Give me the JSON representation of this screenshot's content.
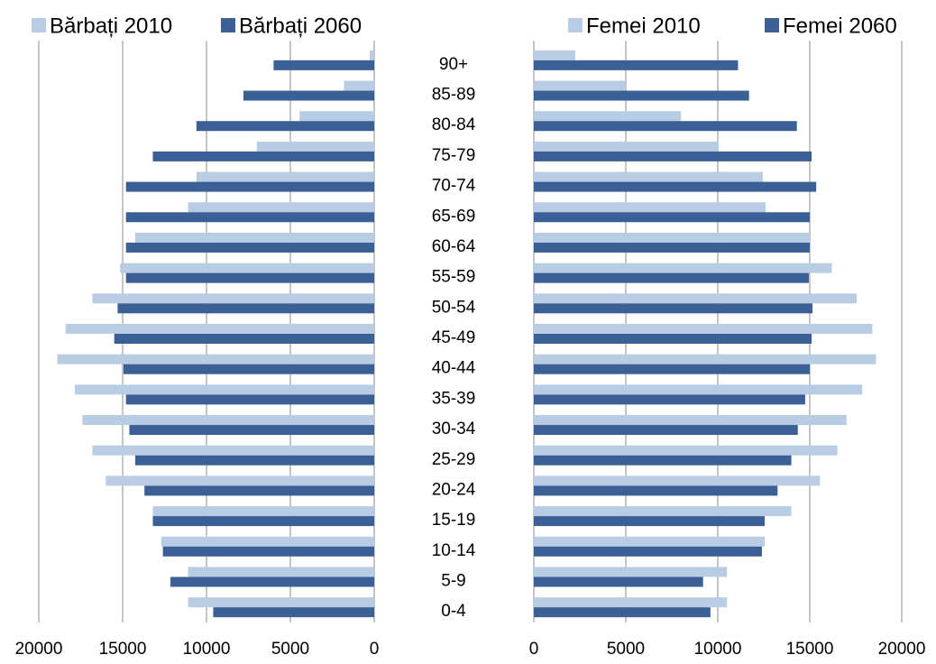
{
  "chart_data": [
    {
      "type": "bar",
      "orientation": "horizontal",
      "categories": [
        "0-4",
        "5-9",
        "10-14",
        "15-19",
        "20-24",
        "25-29",
        "30-34",
        "35-39",
        "40-44",
        "45-49",
        "50-54",
        "55-59",
        "60-64",
        "65-69",
        "70-74",
        "75-79",
        "80-84",
        "85-89",
        "90+"
      ],
      "series": [
        {
          "name": "Bărbați 2010",
          "color": "#b8cce4",
          "values": [
            11100,
            11100,
            12700,
            13200,
            16000,
            16800,
            17400,
            17850,
            18900,
            18400,
            16800,
            15150,
            14250,
            11100,
            10600,
            7000,
            4450,
            1800,
            270
          ]
        },
        {
          "name": "Bărbați 2060",
          "color": "#3b6095",
          "values": [
            9600,
            12150,
            12600,
            13200,
            13700,
            14250,
            14600,
            14800,
            14950,
            15500,
            15300,
            14800,
            14800,
            14800,
            14800,
            13200,
            10600,
            7800,
            6000
          ]
        }
      ],
      "xlim": [
        20000,
        0
      ],
      "xticks": [
        20000,
        15000,
        10000,
        5000,
        0
      ],
      "grid": true
    },
    {
      "type": "bar",
      "orientation": "horizontal",
      "series": [
        {
          "name": "Femei 2010",
          "color": "#b8cce4",
          "values": [
            10500,
            10500,
            12550,
            14000,
            15550,
            16500,
            17000,
            17850,
            18600,
            18400,
            17550,
            16200,
            15000,
            12600,
            12450,
            10050,
            8000,
            5000,
            2250
          ]
        },
        {
          "name": "Femei 2060",
          "color": "#3b6095",
          "values": [
            9600,
            9200,
            12400,
            12550,
            13250,
            14000,
            14350,
            14750,
            15000,
            15100,
            15150,
            14950,
            15000,
            15000,
            15350,
            15100,
            14300,
            11700,
            11100
          ]
        }
      ],
      "xlim": [
        0,
        20000
      ],
      "xticks": [
        0,
        5000,
        10000,
        15000,
        20000
      ],
      "grid": true
    }
  ]
}
